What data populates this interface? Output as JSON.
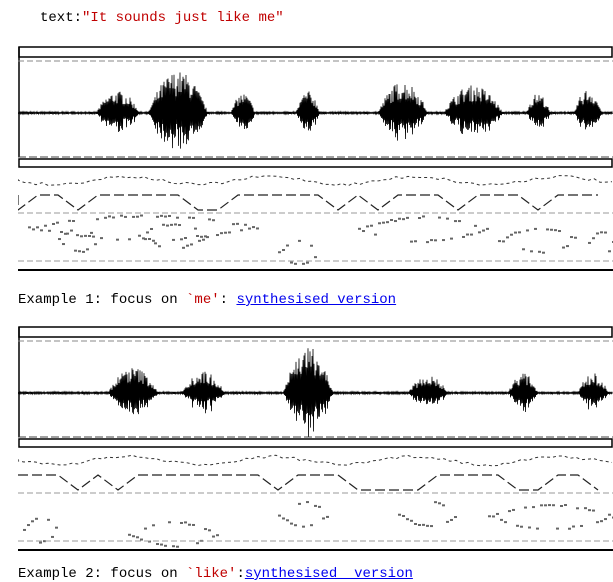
{
  "text_line": {
    "label": "text:",
    "quote": "\"It sounds just like me\""
  },
  "examples": [
    {
      "prefix": "Example 1: focus on ",
      "focus": "`me'",
      "separator": ": ",
      "link": "synthesised version"
    },
    {
      "prefix": "Example 2: focus on ",
      "focus": "`like'",
      "separator": ":",
      "link": "synthesised  version"
    }
  ]
}
